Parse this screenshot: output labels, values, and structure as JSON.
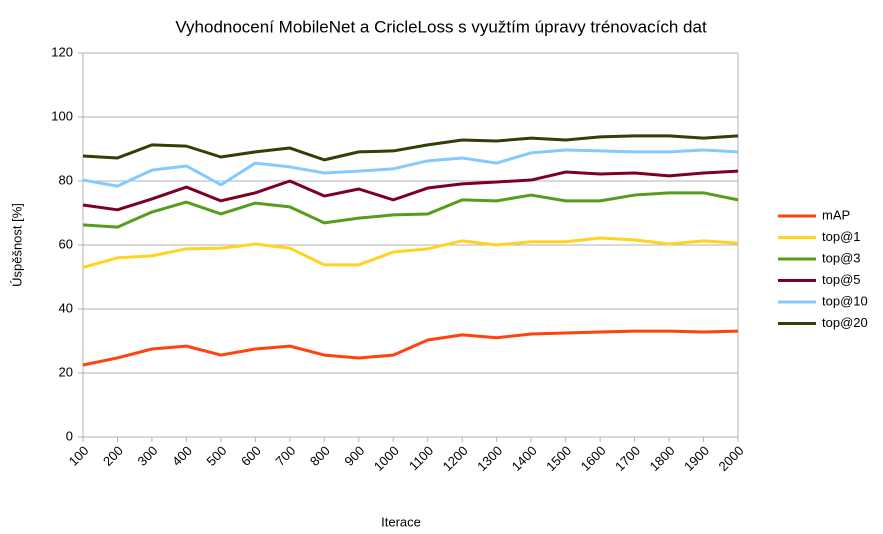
{
  "chart_data": {
    "type": "line",
    "title": "Vyhodnocení MobileNet a CricleLoss s využtím úpravy trénovacích dat",
    "x_label": "Iterace",
    "y_label": "Úspěšnost [%]",
    "categories": [
      100,
      200,
      300,
      400,
      500,
      600,
      700,
      800,
      900,
      1000,
      1100,
      1200,
      1300,
      1400,
      1500,
      1600,
      1700,
      1800,
      1900,
      2000
    ],
    "ylim": [
      0,
      120
    ],
    "yticks": [
      0,
      20,
      40,
      60,
      80,
      100,
      120
    ],
    "grid": true,
    "legend": "right",
    "series": [
      {
        "name": "mAP",
        "color": "#ff420e",
        "values": [
          22.5,
          24.7,
          27.5,
          28.4,
          25.6,
          27.5,
          28.4,
          25.6,
          24.7,
          25.6,
          30.3,
          31.9,
          31,
          32.2,
          32.5,
          32.8,
          33.1,
          33.1,
          32.8,
          33.1
        ]
      },
      {
        "name": "top@1",
        "color": "#ffd320",
        "values": [
          53,
          56,
          56.6,
          58.8,
          59,
          60.3,
          59,
          53.8,
          53.8,
          57.8,
          58.8,
          61.3,
          60,
          61,
          61,
          62.2,
          61.6,
          60.3,
          61.3,
          60.6
        ]
      },
      {
        "name": "top@3",
        "color": "#579d1c",
        "values": [
          66.3,
          65.6,
          70.3,
          73.4,
          69.7,
          73.1,
          71.9,
          66.9,
          68.4,
          69.4,
          69.7,
          74.1,
          73.8,
          75.6,
          73.8,
          73.8,
          75.6,
          76.3,
          76.3,
          74.1
        ]
      },
      {
        "name": "top@5",
        "color": "#7e0021",
        "values": [
          72.5,
          71,
          74.4,
          78.1,
          73.8,
          76.3,
          80,
          75.3,
          77.5,
          74.1,
          77.8,
          79.1,
          79.7,
          80.3,
          82.8,
          82.2,
          82.5,
          81.6,
          82.5,
          83.1
        ]
      },
      {
        "name": "top@10",
        "color": "#83caff",
        "values": [
          80.3,
          78.4,
          83.4,
          84.7,
          78.8,
          85.6,
          84.4,
          82.5,
          83.1,
          83.8,
          86.3,
          87.2,
          85.6,
          88.8,
          89.7,
          89.4,
          89.1,
          89.1,
          89.7,
          89.1
        ]
      },
      {
        "name": "top@20",
        "color": "#314004",
        "values": [
          87.8,
          87.2,
          91.3,
          90.9,
          87.5,
          89.1,
          90.3,
          86.6,
          89.1,
          89.4,
          91.3,
          92.8,
          92.5,
          93.4,
          92.8,
          93.8,
          94.1,
          94.1,
          93.4,
          94.1
        ]
      }
    ]
  }
}
